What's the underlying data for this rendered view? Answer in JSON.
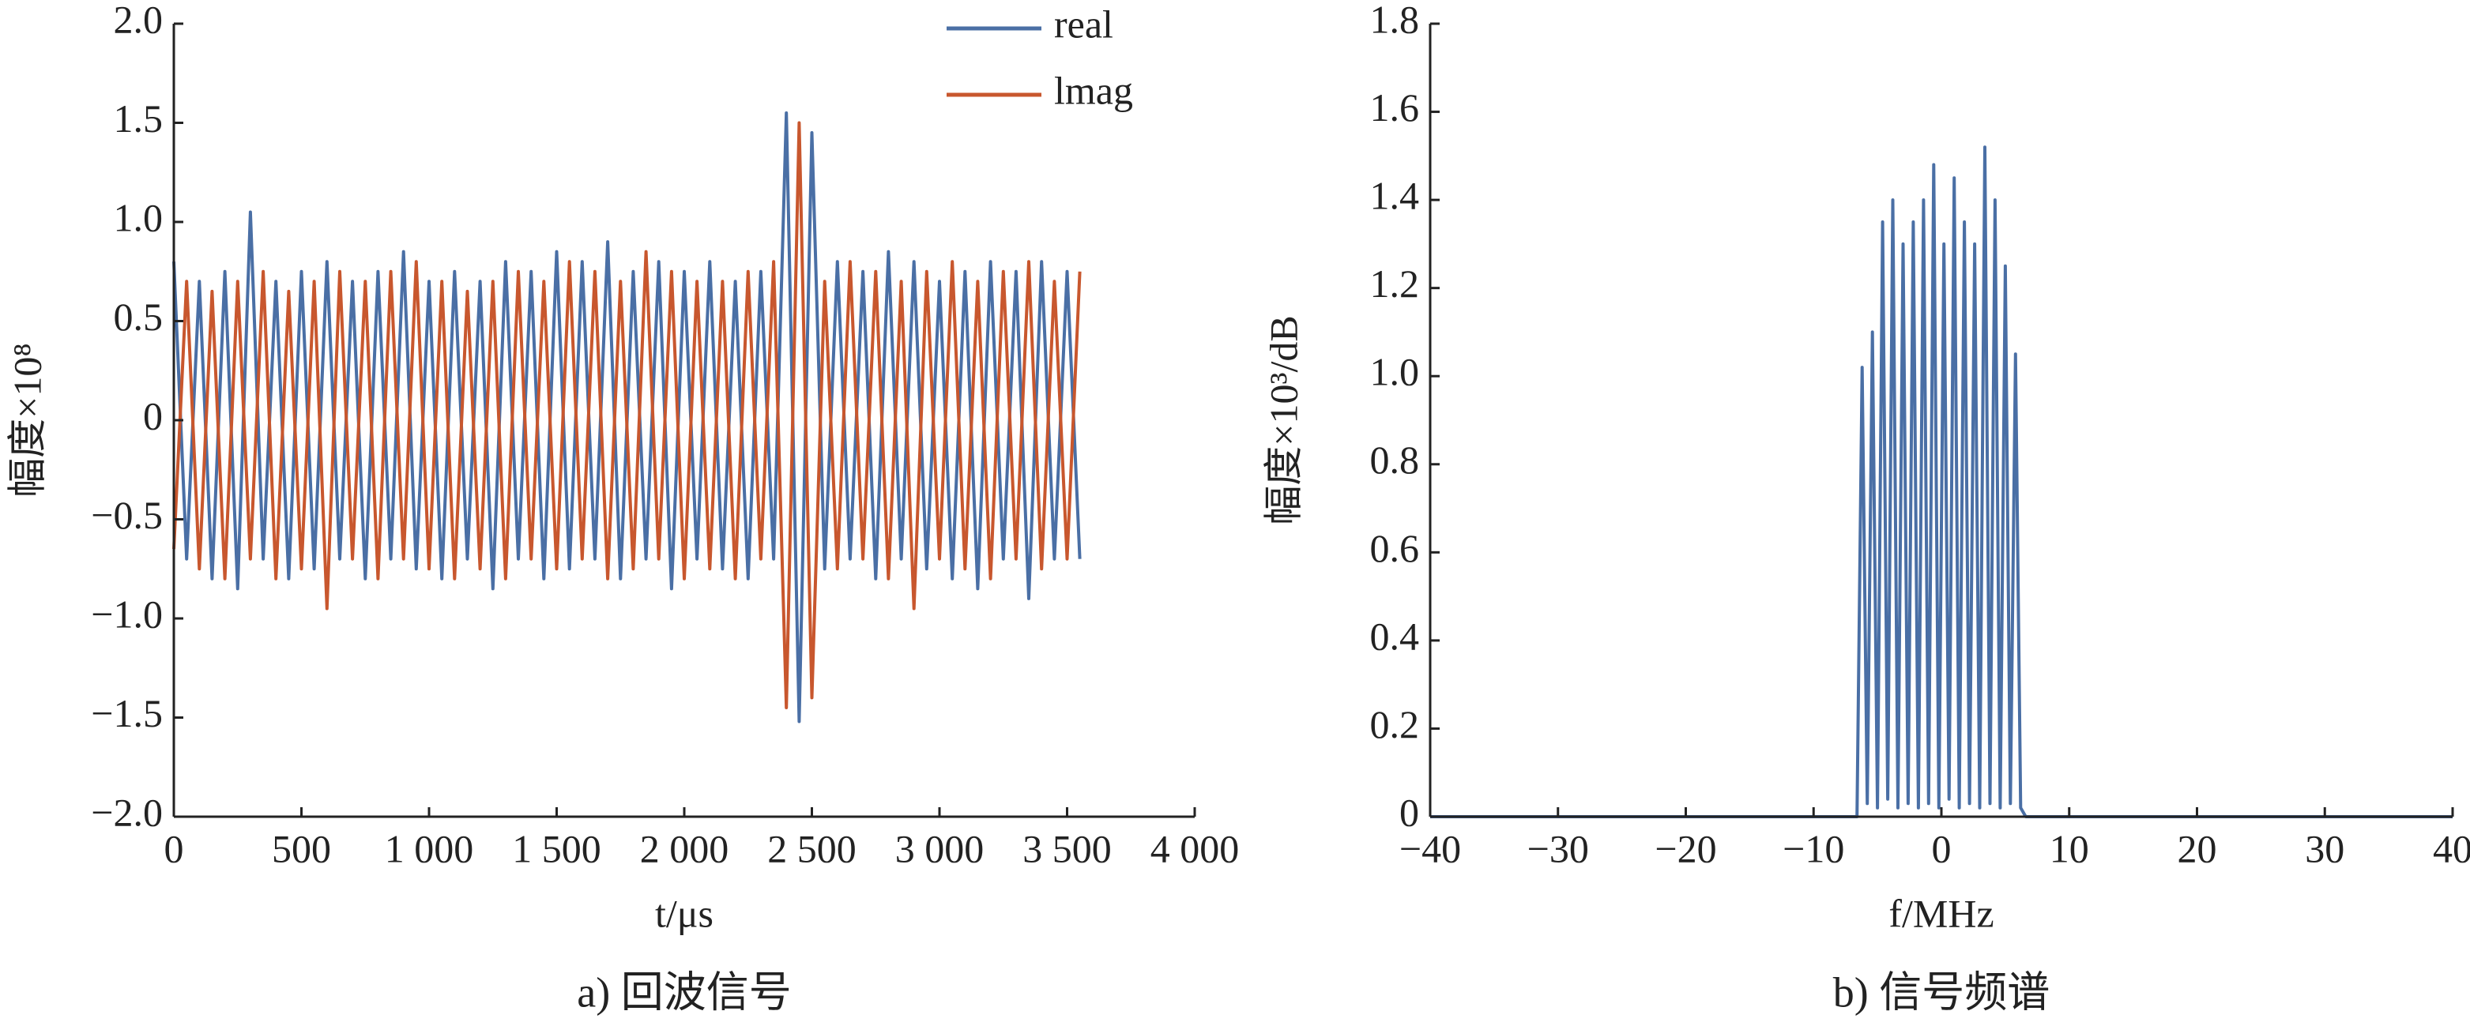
{
  "chart_data": [
    {
      "type": "line",
      "caption": "a) 回波信号",
      "x_label": "t/μs",
      "y_label": "幅度×10⁸",
      "xlim": [
        0,
        4000
      ],
      "ylim": [
        -2,
        2
      ],
      "xticks": [
        0,
        500,
        {
          "value": 1000,
          "label": "1 000"
        },
        {
          "value": 1500,
          "label": "1 500"
        },
        {
          "value": 2000,
          "label": "2 000"
        },
        {
          "value": 2500,
          "label": "2 500"
        },
        {
          "value": 3000,
          "label": "3 000"
        },
        {
          "value": 3500,
          "label": "3 500"
        },
        {
          "value": 4000,
          "label": "4 000"
        }
      ],
      "yticks": [
        {
          "value": -2,
          "label": "−2.0"
        },
        {
          "value": -1.5,
          "label": "−1.5"
        },
        {
          "value": -1,
          "label": "−1.0"
        },
        {
          "value": -0.5,
          "label": "−0.5"
        },
        0,
        0.5,
        {
          "value": 1,
          "label": "1.0"
        },
        1.5,
        {
          "value": 2,
          "label": "2.0"
        }
      ],
      "legend": "upper right",
      "x": [
        0,
        50,
        100,
        150,
        200,
        250,
        300,
        350,
        400,
        450,
        500,
        550,
        600,
        650,
        700,
        750,
        800,
        850,
        900,
        950,
        1000,
        1050,
        1100,
        1150,
        1200,
        1250,
        1300,
        1350,
        1400,
        1450,
        1500,
        1550,
        1600,
        1650,
        1700,
        1750,
        1800,
        1850,
        1900,
        1950,
        2000,
        2050,
        2100,
        2150,
        2200,
        2250,
        2300,
        2350,
        2400,
        2450,
        2500,
        2550,
        2600,
        2650,
        2700,
        2750,
        2800,
        2850,
        2900,
        2950,
        3000,
        3050,
        3100,
        3150,
        3200,
        3250,
        3300,
        3350,
        3400,
        3450,
        3500,
        3550
      ],
      "series": [
        {
          "name": "real",
          "color": "#4a6fa5",
          "values": [
            0.8,
            -0.7,
            0.7,
            -0.8,
            0.75,
            -0.85,
            1.05,
            -0.7,
            0.7,
            -0.8,
            0.75,
            -0.75,
            0.8,
            -0.7,
            0.7,
            -0.8,
            0.75,
            -0.7,
            0.85,
            -0.75,
            0.7,
            -0.8,
            0.75,
            -0.7,
            0.7,
            -0.85,
            0.8,
            -0.7,
            0.75,
            -0.8,
            0.85,
            -0.75,
            0.8,
            -0.7,
            0.9,
            -0.8,
            0.75,
            -0.7,
            0.8,
            -0.85,
            0.75,
            -0.7,
            0.8,
            -0.75,
            0.7,
            -0.8,
            0.75,
            -0.7,
            1.55,
            -1.52,
            1.45,
            -0.75,
            0.8,
            -0.7,
            0.75,
            -0.8,
            0.85,
            -0.7,
            0.8,
            -0.75,
            0.7,
            -0.8,
            0.75,
            -0.85,
            0.8,
            -0.7,
            0.75,
            -0.9,
            0.8,
            -0.7,
            0.75,
            -0.7
          ]
        },
        {
          "name": "lmag",
          "color": "#c8572e",
          "values": [
            -0.65,
            0.7,
            -0.75,
            0.65,
            -0.8,
            0.7,
            -0.7,
            0.75,
            -0.8,
            0.65,
            -0.75,
            0.7,
            -0.95,
            0.75,
            -0.7,
            0.7,
            -0.8,
            0.75,
            -0.7,
            0.8,
            -0.75,
            0.7,
            -0.8,
            0.65,
            -0.75,
            0.7,
            -0.8,
            0.75,
            -0.7,
            0.7,
            -0.75,
            0.8,
            -0.7,
            0.75,
            -0.8,
            0.7,
            -0.75,
            0.85,
            -0.7,
            0.75,
            -0.8,
            0.7,
            -0.75,
            0.7,
            -0.8,
            0.75,
            -0.7,
            0.8,
            -1.45,
            1.5,
            -1.4,
            0.7,
            -0.75,
            0.8,
            -0.7,
            0.75,
            -0.8,
            0.7,
            -0.95,
            0.75,
            -0.7,
            0.8,
            -0.75,
            0.7,
            -0.8,
            0.75,
            -0.7,
            0.8,
            -0.75,
            0.7,
            -0.7,
            0.75
          ]
        }
      ]
    },
    {
      "type": "line",
      "caption": "b) 信号频谱",
      "x_label": "f/MHz",
      "y_label": "幅度×10³/dB",
      "xlim": [
        -40,
        40
      ],
      "ylim": [
        0,
        1.8
      ],
      "xticks": [
        {
          "value": -40,
          "label": "−40"
        },
        {
          "value": -30,
          "label": "−30"
        },
        {
          "value": -20,
          "label": "−20"
        },
        {
          "value": -10,
          "label": "−10"
        },
        0,
        10,
        20,
        30,
        40
      ],
      "yticks": [
        0,
        0.2,
        0.4,
        0.6,
        0.8,
        {
          "value": 1,
          "label": "1.0"
        },
        1.2,
        1.4,
        1.6,
        1.8
      ],
      "color": "#4a6fa5",
      "x": [
        -40,
        -6.6,
        -6.2,
        -5.8,
        -5.4,
        -5.0,
        -4.6,
        -4.2,
        -3.8,
        -3.4,
        -3.0,
        -2.6,
        -2.2,
        -1.8,
        -1.4,
        -1.0,
        -0.6,
        -0.2,
        0.2,
        0.6,
        1.0,
        1.4,
        1.8,
        2.2,
        2.6,
        3.0,
        3.4,
        3.8,
        4.2,
        4.6,
        5.0,
        5.4,
        5.8,
        6.2,
        6.6,
        40
      ],
      "values": [
        0,
        0,
        1.02,
        0.03,
        1.1,
        0.02,
        1.35,
        0.04,
        1.4,
        0.02,
        1.3,
        0.03,
        1.35,
        0.02,
        1.4,
        0.03,
        1.48,
        0.02,
        1.3,
        0.04,
        1.45,
        0.02,
        1.35,
        0.03,
        1.3,
        0.02,
        1.52,
        0.03,
        1.4,
        0.02,
        1.25,
        0.03,
        1.05,
        0.02,
        0,
        0
      ]
    }
  ]
}
